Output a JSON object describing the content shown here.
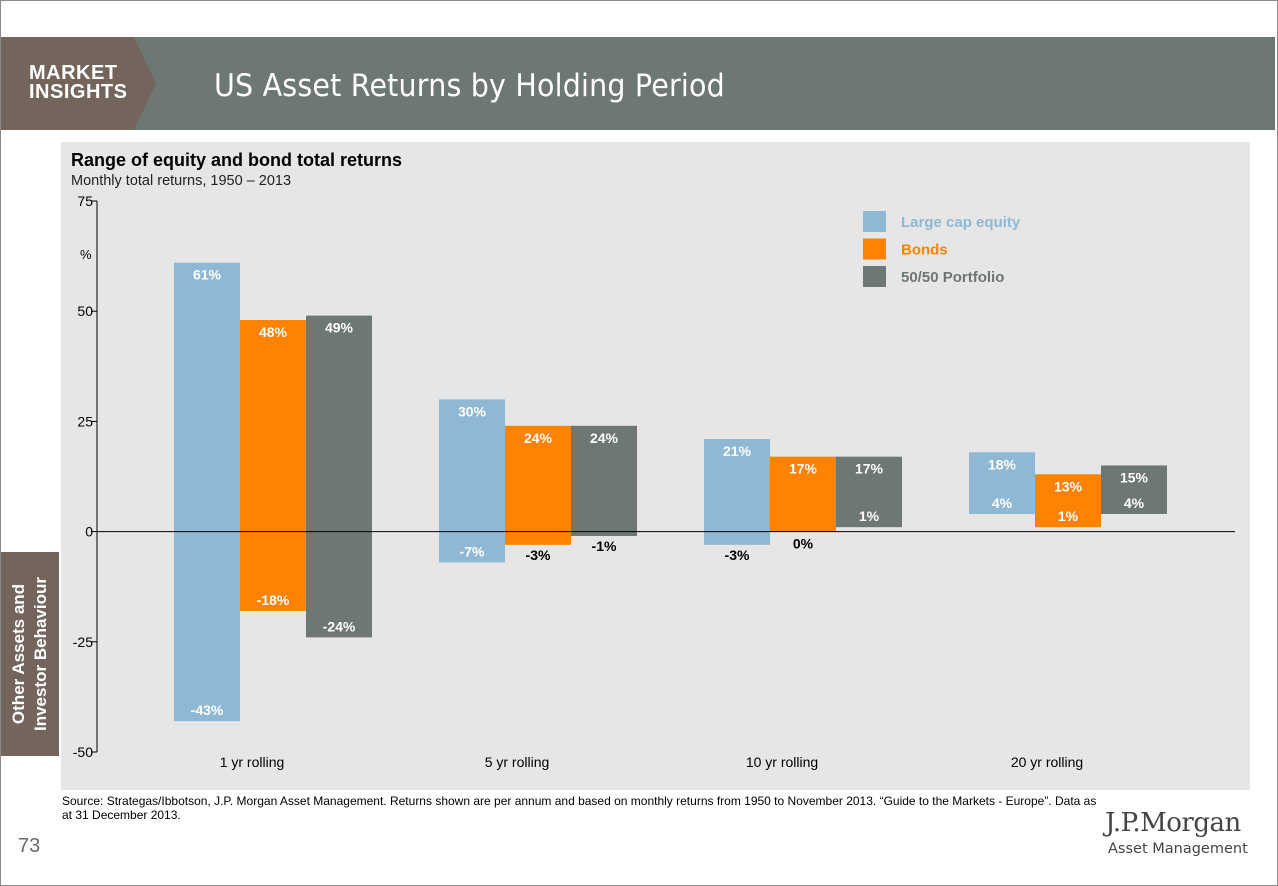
{
  "header": {
    "brand_line1": "MARKET",
    "brand_line2": "INSIGHTS",
    "title": "US Asset Returns by Holding Period"
  },
  "side_tab": {
    "line1": "Other Assets and",
    "line2": "Investor Behaviour"
  },
  "footer": {
    "source": "Source: Strategas/Ibbotson, J.P. Morgan Asset Management. Returns shown are per annum and based on monthly returns from 1950 to November 2013. “Guide to the Markets - Europe”. Data as at 31 December 2013.",
    "page_number": "73",
    "logo": "J.P.Morgan",
    "logo_sub": "Asset Management"
  },
  "colors": {
    "header": "#6d7774",
    "brand": "#73655c",
    "panel": "#e6e6e6",
    "equity": "#8fb8d4",
    "bonds": "#ff8200",
    "portfolio": "#6d7774"
  },
  "chart_data": {
    "type": "floating-bar",
    "title": "Range of equity and bond total returns",
    "subtitle": "Monthly total returns, 1950 – 2013",
    "ylabel": "%",
    "ylim": [
      -50,
      75
    ],
    "yticks": [
      75,
      50,
      25,
      0,
      -25,
      -50
    ],
    "categories": [
      "1 yr rolling",
      "5 yr rolling",
      "10 yr rolling",
      "20 yr rolling"
    ],
    "series": [
      {
        "name": "Large cap equity",
        "color": "#8fb8d4",
        "max": [
          61,
          30,
          21,
          18
        ],
        "min": [
          -43,
          -7,
          -3,
          4
        ],
        "max_labels": [
          "61%",
          "30%",
          "21%",
          "18%"
        ],
        "min_labels": [
          "-43%",
          "-7%",
          "-3%",
          "4%"
        ]
      },
      {
        "name": "Bonds",
        "color": "#ff8200",
        "max": [
          48,
          24,
          17,
          13
        ],
        "min": [
          -18,
          -3,
          0,
          1
        ],
        "max_labels": [
          "48%",
          "24%",
          "17%",
          "13%"
        ],
        "min_labels": [
          "-18%",
          "-3%",
          "0%",
          "1%"
        ]
      },
      {
        "name": "50/50 Portfolio",
        "color": "#6d7774",
        "max": [
          49,
          24,
          17,
          15
        ],
        "min": [
          -24,
          -1,
          1,
          4
        ],
        "max_labels": [
          "49%",
          "24%",
          "17%",
          "15%"
        ],
        "min_labels": [
          "-24%",
          "-1%",
          "1%",
          "4%"
        ]
      }
    ],
    "legend_position": "top-right"
  }
}
